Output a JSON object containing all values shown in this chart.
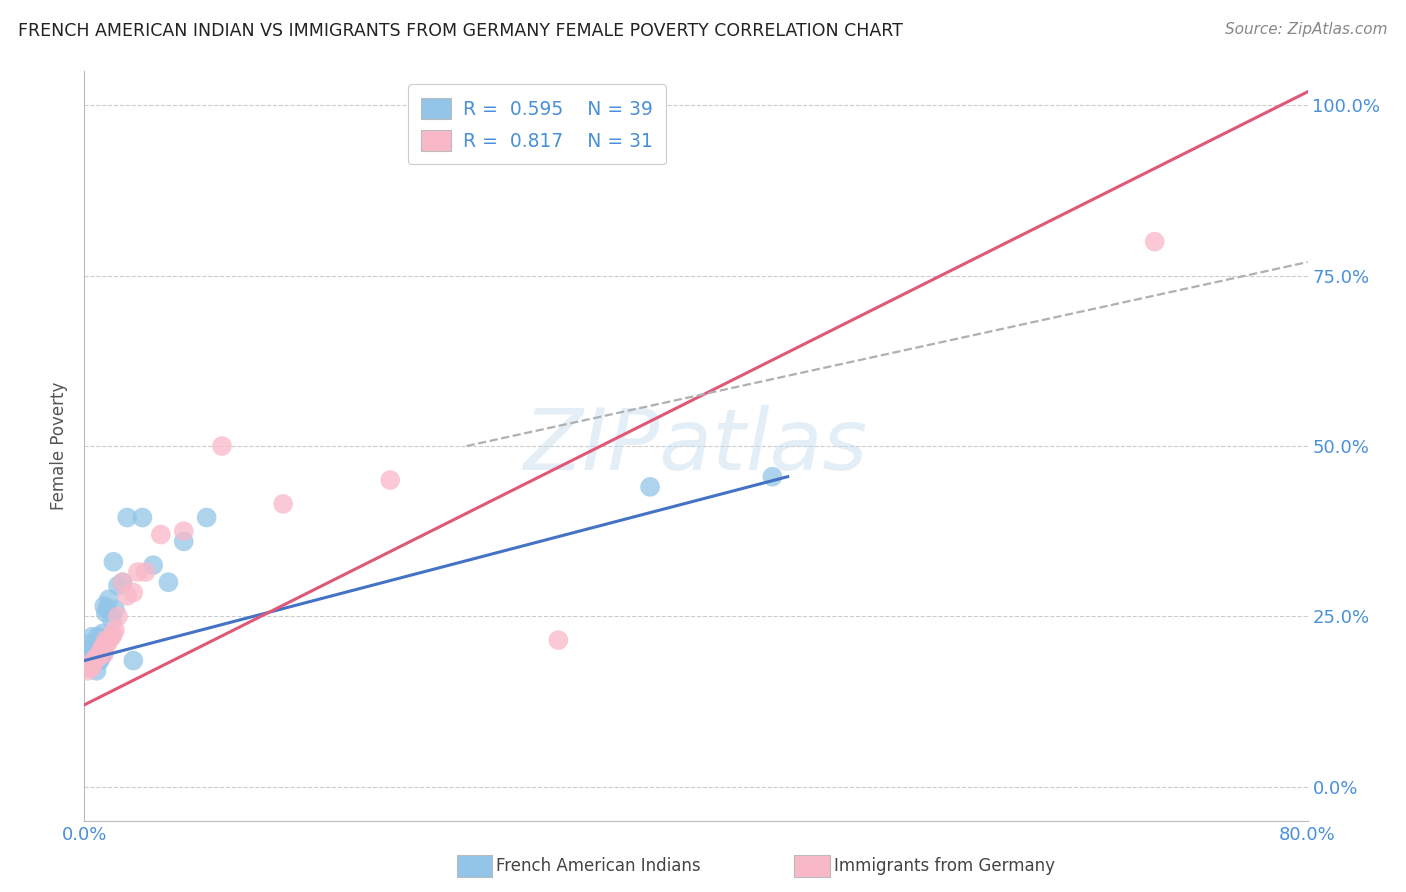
{
  "title": "FRENCH AMERICAN INDIAN VS IMMIGRANTS FROM GERMANY FEMALE POVERTY CORRELATION CHART",
  "source": "Source: ZipAtlas.com",
  "ylabel": "Female Poverty",
  "xlim": [
    0.0,
    0.8
  ],
  "ylim": [
    -0.05,
    1.05
  ],
  "xticks": [
    0.0,
    0.2,
    0.4,
    0.6,
    0.8
  ],
  "xtick_labels": [
    "0.0%",
    "",
    "",
    "",
    "80.0%"
  ],
  "ytick_labels": [
    "0.0%",
    "25.0%",
    "50.0%",
    "75.0%",
    "100.0%"
  ],
  "ytick_positions": [
    0.0,
    0.25,
    0.5,
    0.75,
    1.0
  ],
  "watermark": "ZIPatlas",
  "blue_color": "#92c5e8",
  "pink_color": "#f9b8c8",
  "blue_line_color": "#4472c4",
  "pink_line_color": "#e05878",
  "dashed_line_color": "#b0b0b0",
  "blue_scatter_x": [
    0.001,
    0.002,
    0.003,
    0.003,
    0.004,
    0.005,
    0.005,
    0.006,
    0.007,
    0.007,
    0.008,
    0.008,
    0.009,
    0.009,
    0.01,
    0.01,
    0.011,
    0.011,
    0.012,
    0.012,
    0.013,
    0.014,
    0.015,
    0.016,
    0.017,
    0.018,
    0.019,
    0.02,
    0.022,
    0.025,
    0.028,
    0.032,
    0.038,
    0.045,
    0.055,
    0.065,
    0.08,
    0.37,
    0.45
  ],
  "blue_scatter_y": [
    0.19,
    0.18,
    0.2,
    0.175,
    0.21,
    0.22,
    0.195,
    0.185,
    0.195,
    0.205,
    0.17,
    0.2,
    0.185,
    0.22,
    0.185,
    0.21,
    0.19,
    0.215,
    0.195,
    0.225,
    0.265,
    0.255,
    0.26,
    0.275,
    0.22,
    0.245,
    0.33,
    0.26,
    0.295,
    0.3,
    0.395,
    0.185,
    0.395,
    0.325,
    0.3,
    0.36,
    0.395,
    0.44,
    0.455
  ],
  "pink_scatter_x": [
    0.002,
    0.003,
    0.004,
    0.005,
    0.006,
    0.007,
    0.008,
    0.009,
    0.01,
    0.011,
    0.012,
    0.013,
    0.014,
    0.015,
    0.016,
    0.018,
    0.019,
    0.02,
    0.022,
    0.025,
    0.028,
    0.032,
    0.035,
    0.04,
    0.05,
    0.065,
    0.09,
    0.13,
    0.2,
    0.31,
    0.7
  ],
  "pink_scatter_y": [
    0.17,
    0.175,
    0.18,
    0.175,
    0.185,
    0.185,
    0.19,
    0.19,
    0.195,
    0.2,
    0.205,
    0.195,
    0.215,
    0.21,
    0.215,
    0.22,
    0.225,
    0.23,
    0.25,
    0.3,
    0.28,
    0.285,
    0.315,
    0.315,
    0.37,
    0.375,
    0.5,
    0.415,
    0.45,
    0.215,
    0.8
  ],
  "blue_trend_x": [
    0.0,
    0.46
  ],
  "blue_trend_y": [
    0.185,
    0.455
  ],
  "pink_trend_x": [
    0.0,
    0.8
  ],
  "pink_trend_y": [
    0.12,
    1.02
  ],
  "dashed_trend_x": [
    0.25,
    0.8
  ],
  "dashed_trend_y": [
    0.5,
    0.77
  ]
}
